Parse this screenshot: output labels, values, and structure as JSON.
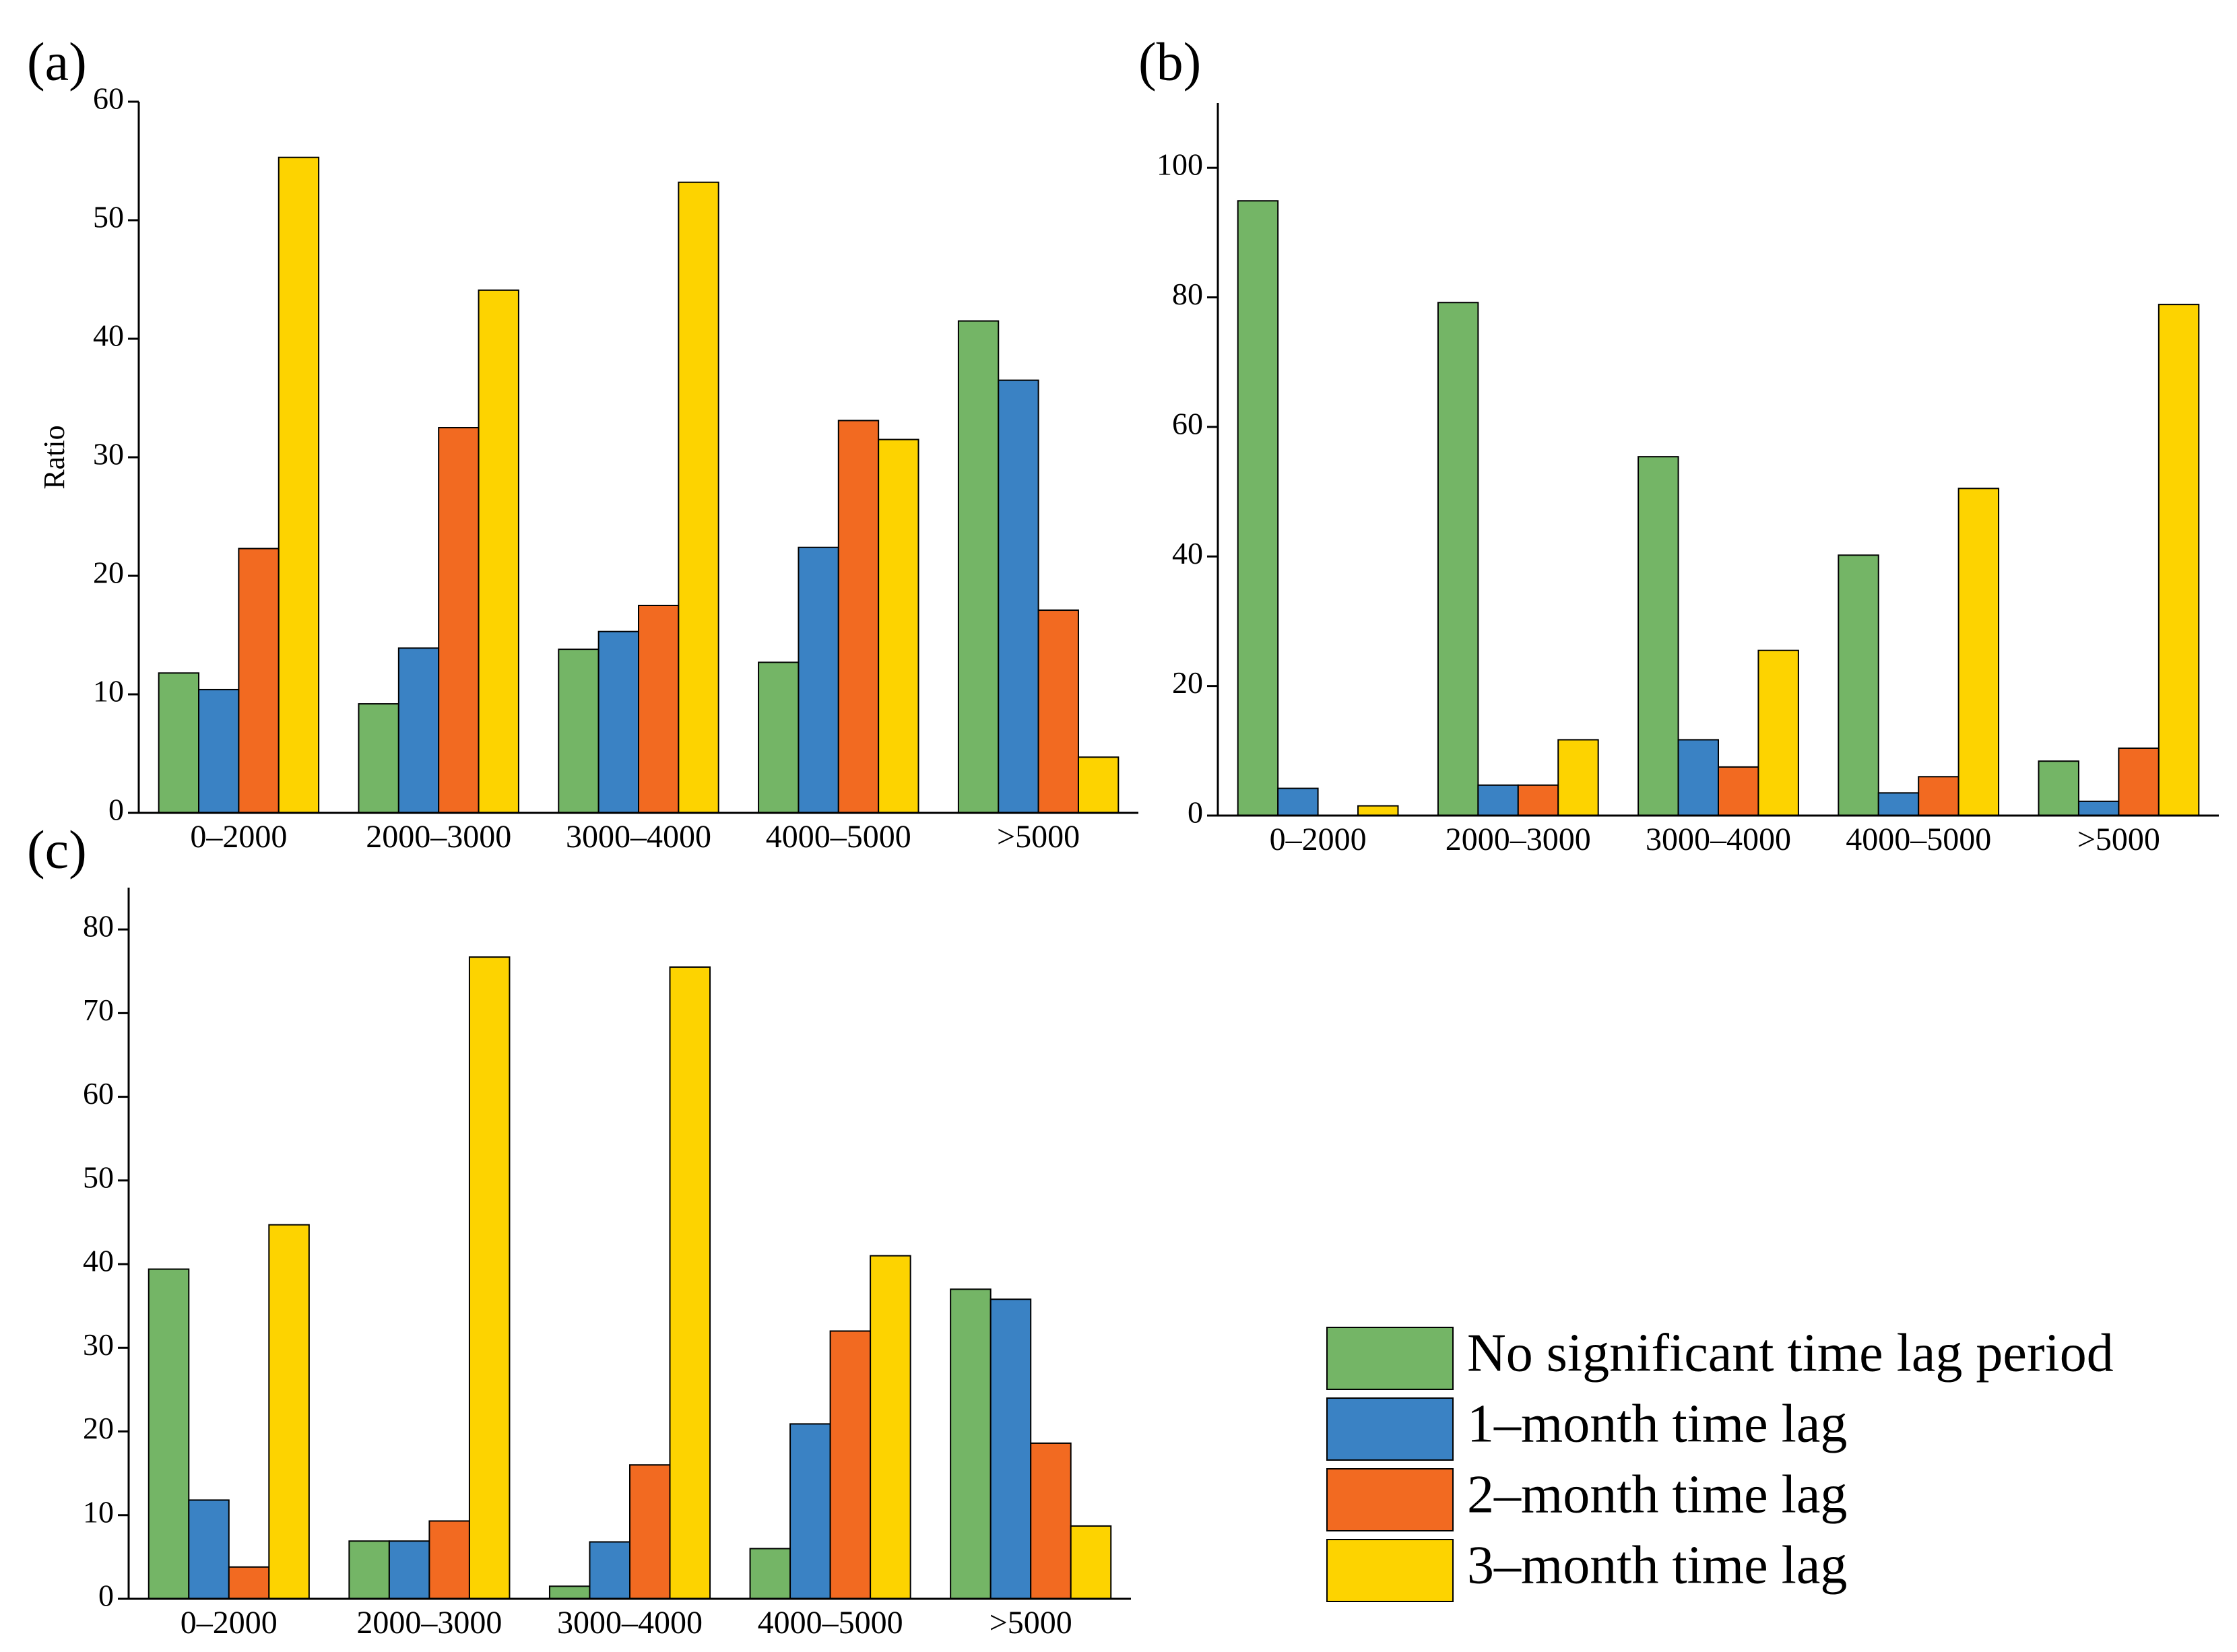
{
  "chart_data": [
    {
      "type": "bar",
      "label": "(a)",
      "y_label": "Ratio",
      "categories": [
        "0–2000",
        "2000–3000",
        "3000–4000",
        "4000–5000",
        ">5000"
      ],
      "series": [
        {
          "name": "No significant time lag period",
          "color": "#74b566",
          "values": [
            11.8,
            9.2,
            13.8,
            12.7,
            41.5
          ]
        },
        {
          "name": "1–month time lag",
          "color": "#3a82c4",
          "values": [
            10.4,
            13.9,
            15.3,
            22.4,
            36.5
          ]
        },
        {
          "name": "2–month time lag",
          "color": "#f26a21",
          "values": [
            22.3,
            32.5,
            17.5,
            33.1,
            17.1
          ]
        },
        {
          "name": "3–month time lag",
          "color": "#fdd300",
          "values": [
            55.3,
            44.1,
            53.2,
            31.5,
            4.7
          ]
        }
      ],
      "ylim": [
        0,
        60
      ],
      "yticks": [
        0,
        10,
        20,
        30,
        40,
        50,
        60
      ]
    },
    {
      "type": "bar",
      "label": "(b)",
      "categories": [
        "0–2000",
        "2000–3000",
        "3000–4000",
        "4000–5000",
        ">5000"
      ],
      "series": [
        {
          "color": "#74b566",
          "values": [
            94.9,
            79.2,
            55.4,
            40.2,
            8.4
          ]
        },
        {
          "color": "#3a82c4",
          "values": [
            4.2,
            4.7,
            11.7,
            3.5,
            2.2
          ]
        },
        {
          "color": "#f26a21",
          "values": [
            0,
            4.7,
            7.5,
            6.0,
            10.4
          ]
        },
        {
          "color": "#fdd300",
          "values": [
            1.5,
            11.7,
            25.5,
            50.5,
            78.9
          ]
        }
      ],
      "ylim": [
        0,
        110
      ],
      "yticks": [
        0,
        20,
        40,
        60,
        80,
        100
      ]
    },
    {
      "type": "bar",
      "label": "(c)",
      "categories": [
        "0–2000",
        "2000–3000",
        "3000–4000",
        "4000–5000",
        ">5000"
      ],
      "series": [
        {
          "color": "#74b566",
          "values": [
            39.4,
            6.9,
            1.5,
            6.0,
            37.0
          ]
        },
        {
          "color": "#3a82c4",
          "values": [
            11.8,
            6.9,
            6.8,
            20.9,
            35.8
          ]
        },
        {
          "color": "#f26a21",
          "values": [
            3.8,
            9.3,
            16.0,
            32.0,
            18.6
          ]
        },
        {
          "color": "#fdd300",
          "values": [
            44.7,
            76.7,
            75.5,
            41.0,
            8.7
          ]
        }
      ],
      "ylim": [
        0,
        85
      ],
      "yticks": [
        0,
        10,
        20,
        30,
        40,
        50,
        60,
        70,
        80
      ]
    }
  ]
}
